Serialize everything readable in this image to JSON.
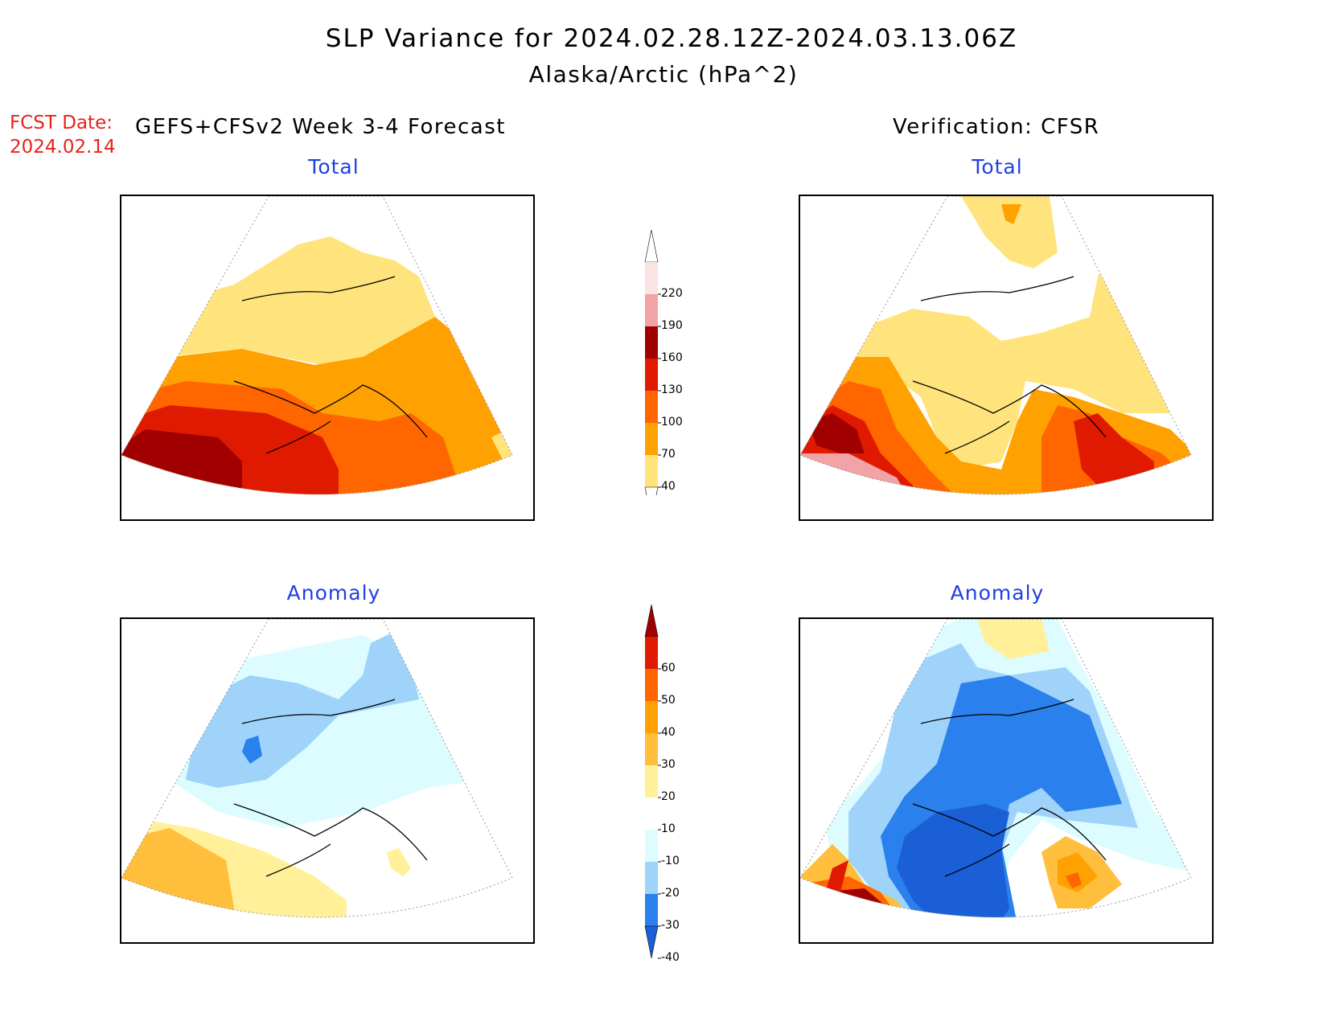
{
  "header": {
    "title": "SLP Variance for 2024.02.28.12Z-2024.03.13.06Z",
    "subtitle": "Alaska/Arctic (hPa^2)",
    "fcst_label": "FCST Date:",
    "fcst_date": "2024.02.14",
    "left_heading": "GEFS+CFSv2 Week 3-4 Forecast",
    "right_heading": "Verification: CFSR"
  },
  "panels": {
    "forecast_total": {
      "title": "Total"
    },
    "verification_total": {
      "title": "Total"
    },
    "forecast_anomaly": {
      "title": "Anomaly"
    },
    "verification_anomaly": {
      "title": "Anomaly"
    }
  },
  "colorbars": {
    "total": {
      "labels": [
        "220",
        "190",
        "160",
        "130",
        "100",
        "70",
        "40"
      ],
      "colors": [
        "#ffffff",
        "#fbe3e3",
        "#f2a3a5",
        "#a10000",
        "#e01a00",
        "#ff6600",
        "#ffa100",
        "#ffe47d",
        "#ffffff"
      ]
    },
    "anomaly": {
      "labels": [
        "60",
        "50",
        "40",
        "30",
        "20",
        "10",
        "-10",
        "-20",
        "-30",
        "-40"
      ],
      "colors": [
        "#a10000",
        "#e01a00",
        "#ff6600",
        "#ffa100",
        "#ffbe3c",
        "#fff099",
        "#ffffff",
        "#dcfcff",
        "#9fd3fa",
        "#2a80ec",
        "#1a5fd6"
      ]
    }
  },
  "legend_colors": {
    "fcst_label": "#e8221b",
    "panel_title": "#1f3fe0"
  }
}
